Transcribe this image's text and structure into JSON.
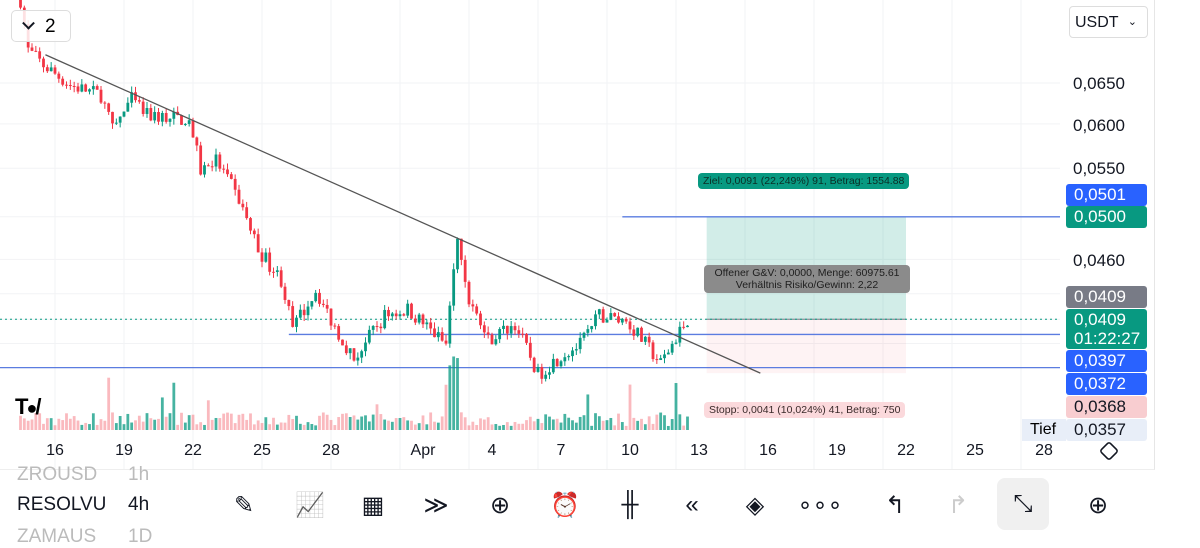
{
  "currency_select": "USDT",
  "legend_toggle": {
    "count": "2"
  },
  "price_axis": {
    "scale": "log",
    "ticks": [
      "0,0650",
      "0,0600",
      "0,0550",
      "0,0460"
    ],
    "badges": [
      {
        "text": "0,0501",
        "color": "#2962ff"
      },
      {
        "text": "0,0500",
        "color": "#089981"
      },
      {
        "text": "0,0409",
        "color": "#787b86"
      },
      {
        "text": "0,0409",
        "sub": "01:22:27",
        "color": "#089981"
      },
      {
        "text": "0,0397",
        "color": "#2962ff"
      },
      {
        "text": "0,0372",
        "color": "#2962ff"
      },
      {
        "text": "0,0368",
        "color": "#f8cdd0"
      }
    ],
    "low_label": "Tief",
    "low_value": "0,0357"
  },
  "date_axis": [
    "16",
    "19",
    "22",
    "25",
    "28",
    "Apr",
    "4",
    "7",
    "10",
    "13",
    "16",
    "19",
    "22",
    "25",
    "28"
  ],
  "position_tool": {
    "target": "Ziel: 0,0091 (22,249%) 91, Betrag: 1554.88",
    "info1": "Offener G&V: 0,0000, Menge: 60975.61",
    "info2": "Verhältnis Risiko/Gewinn: 2,22",
    "stop": "Stopp: 0,0041 (10,024%) 41, Betrag: 750"
  },
  "watchlist": [
    {
      "symbol": "ZROUSD",
      "interval": "1h"
    },
    {
      "symbol": "RESOLVU",
      "interval": "4h"
    },
    {
      "symbol": "ZAMAUS",
      "interval": "1D"
    }
  ],
  "toolbar_icons": [
    "pencil-icon",
    "indicators-icon",
    "grid-icon",
    "patterns-icon",
    "add-icon",
    "alarm-icon",
    "candles-icon",
    "replay-icon",
    "layers-icon",
    "more-icon",
    "undo-icon",
    "redo-icon",
    "collapse-icon",
    "lightbulb-icon"
  ],
  "colors": {
    "up": "#089981",
    "down": "#f23645",
    "line": "#5b7ce0"
  },
  "chart_data": {
    "type": "candlestick",
    "interval": "4h",
    "yscale": "log",
    "ylim": [
      0.0357,
      0.077
    ],
    "price_path": [
      [
        "Mar 14 12:00",
        0.0765
      ],
      [
        "Mar 14 20:00",
        0.0693
      ],
      [
        "Mar 15 12:00",
        0.0673
      ],
      [
        "Mar 16 16:00",
        0.0647
      ],
      [
        "Mar 18 00:00",
        0.0635
      ],
      [
        "Mar 18 12:00",
        0.0593
      ],
      [
        "Mar 19 08:00",
        0.0629
      ],
      [
        "Mar 20 00:00",
        0.061
      ],
      [
        "Mar 21 20:00",
        0.0605
      ],
      [
        "Mar 22 08:00",
        0.0548
      ],
      [
        "Mar 23 00:00",
        0.0559
      ],
      [
        "Mar 24 00:00",
        0.0517
      ],
      [
        "Mar 24 20:00",
        0.0469
      ],
      [
        "Mar 25 20:00",
        0.0442
      ],
      [
        "Mar 26 08:00",
        0.0401
      ],
      [
        "Mar 27 08:00",
        0.0433
      ],
      [
        "Mar 28 00:00",
        0.0408
      ],
      [
        "Mar 29 00:00",
        0.0378
      ],
      [
        "Mar 30 08:00",
        0.0412
      ],
      [
        "Mar 31 08:00",
        0.0417
      ],
      [
        "Apr 2 00:00",
        0.0389
      ],
      [
        "Apr 2 12:00",
        0.0478
      ],
      [
        "Apr 3 00:00",
        0.0425
      ],
      [
        "Apr 3 20:00",
        0.0393
      ],
      [
        "Apr 5 00:00",
        0.0405
      ],
      [
        "Apr 6 00:00",
        0.0367
      ],
      [
        "Apr 7 00:00",
        0.0381
      ],
      [
        "Apr 7 20:00",
        0.0389
      ],
      [
        "Apr 8 16:00",
        0.0412
      ],
      [
        "Apr 9 20:00",
        0.0408
      ],
      [
        "Apr 11 08:00",
        0.0375
      ],
      [
        "Apr 12 12:00",
        0.0409
      ]
    ],
    "trendline": [
      [
        "Mar 15 14:00",
        0.0687
      ],
      [
        "Apr 15 16:00",
        0.0368
      ]
    ],
    "horizontal_lines": [
      {
        "price": 0.0397,
        "from": "Mar 26 04:00"
      },
      {
        "price": 0.0372,
        "from": "Mar 12 00:00"
      },
      {
        "price": 0.05,
        "from": "Apr 9 16:00"
      }
    ],
    "long_position": {
      "entry": 0.0409,
      "target": 0.05,
      "stop": 0.0368,
      "from": "Apr 13 08:00",
      "to": "Apr 22 00:00"
    },
    "current_price": 0.0409
  }
}
